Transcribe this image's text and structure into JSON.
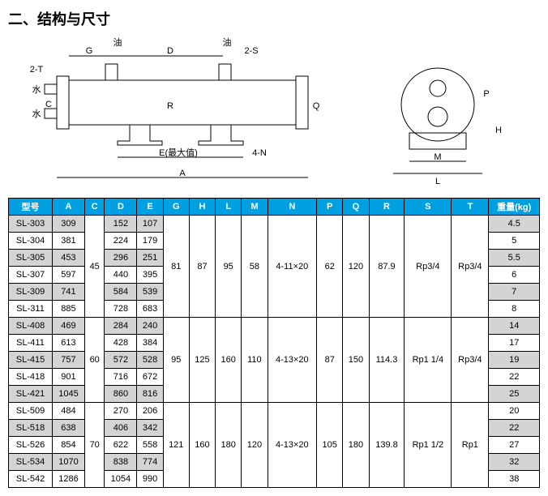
{
  "title": "二、结构与尺寸",
  "diagram": {
    "labels": {
      "G": "G",
      "oil1": "油",
      "D": "D",
      "oil2": "油",
      "s2": "2-S",
      "t2": "2-T",
      "water1": "水",
      "water2": "水",
      "C": "C",
      "R": "R",
      "Q": "Q",
      "E": "E(最大值)",
      "n4": "4-N",
      "A": "A",
      "P": "P",
      "H": "H",
      "M": "M",
      "L": "L"
    }
  },
  "table": {
    "headers": [
      "型号",
      "A",
      "C",
      "D",
      "E",
      "G",
      "H",
      "L",
      "M",
      "N",
      "P",
      "Q",
      "R",
      "S",
      "T",
      "重量(kg)"
    ],
    "rows": [
      {
        "m": "SL-303",
        "A": "309",
        "C": "",
        "D": "152",
        "E": "107",
        "W": "4.5"
      },
      {
        "m": "SL-304",
        "A": "381",
        "C": "",
        "D": "224",
        "E": "179",
        "W": "5"
      },
      {
        "m": "SL-305",
        "A": "453",
        "C": "",
        "D": "296",
        "E": "251",
        "W": "5.5"
      },
      {
        "m": "SL-307",
        "A": "597",
        "C": "45",
        "D": "440",
        "E": "395",
        "W": "6"
      },
      {
        "m": "SL-309",
        "A": "741",
        "C": "",
        "D": "584",
        "E": "539",
        "W": "7"
      },
      {
        "m": "SL-311",
        "A": "885",
        "C": "",
        "D": "728",
        "E": "683",
        "W": "8"
      },
      {
        "m": "SL-408",
        "A": "469",
        "C": "",
        "D": "284",
        "E": "240",
        "W": "14"
      },
      {
        "m": "SL-411",
        "A": "613",
        "C": "",
        "D": "428",
        "E": "384",
        "W": "17"
      },
      {
        "m": "SL-415",
        "A": "757",
        "C": "60",
        "D": "572",
        "E": "528",
        "W": "19"
      },
      {
        "m": "SL-418",
        "A": "901",
        "C": "",
        "D": "716",
        "E": "672",
        "W": "22"
      },
      {
        "m": "SL-421",
        "A": "1045",
        "C": "",
        "D": "860",
        "E": "816",
        "W": "25"
      },
      {
        "m": "SL-509",
        "A": "484",
        "C": "",
        "D": "270",
        "E": "206",
        "W": "20"
      },
      {
        "m": "SL-518",
        "A": "638",
        "C": "",
        "D": "406",
        "E": "342",
        "W": "22"
      },
      {
        "m": "SL-526",
        "A": "854",
        "C": "70",
        "D": "622",
        "E": "558",
        "W": "27"
      },
      {
        "m": "SL-534",
        "A": "1070",
        "C": "",
        "D": "838",
        "E": "774",
        "W": "32"
      },
      {
        "m": "SL-542",
        "A": "1286",
        "C": "",
        "D": "1054",
        "E": "990",
        "W": "38"
      }
    ],
    "groups": [
      {
        "span": 6,
        "C": "45",
        "G": "81",
        "H": "87",
        "L": "95",
        "M": "58",
        "N": "4-11×20",
        "P": "62",
        "Q": "120",
        "R": "87.9",
        "S": "Rp3/4",
        "T": "Rp3/4"
      },
      {
        "span": 5,
        "C": "60",
        "G": "95",
        "H": "125",
        "L": "160",
        "M": "110",
        "N": "4-13×20",
        "P": "87",
        "Q": "150",
        "R": "114.3",
        "S": "Rp1 1/4",
        "T": "Rp3/4"
      },
      {
        "span": 5,
        "C": "70",
        "G": "121",
        "H": "160",
        "L": "180",
        "M": "120",
        "N": "4-13×20",
        "P": "105",
        "Q": "180",
        "R": "139.8",
        "S": "Rp1 1/2",
        "T": "Rp1"
      }
    ]
  }
}
